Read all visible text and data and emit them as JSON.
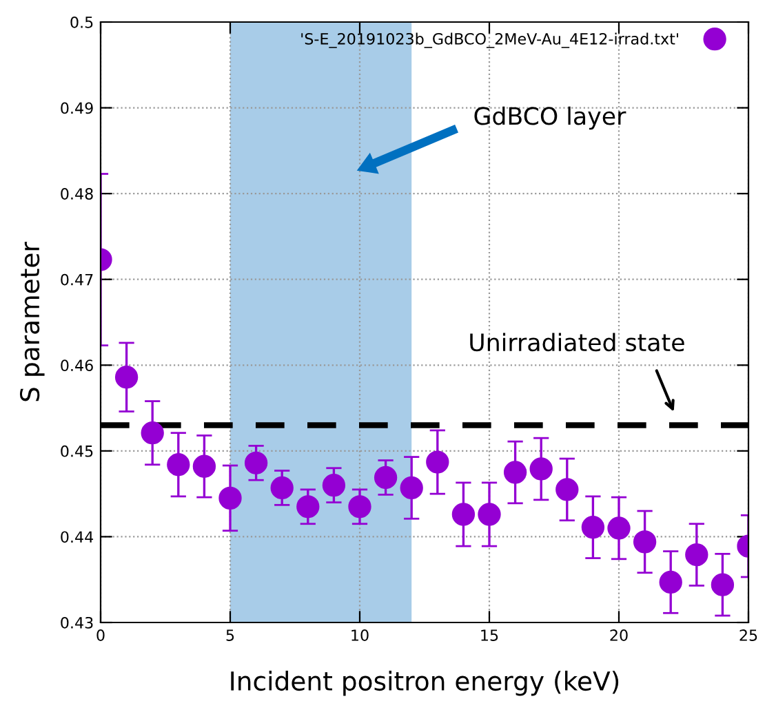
{
  "chart_data": {
    "type": "scatter",
    "xlabel": "Incident positron energy (keV)",
    "ylabel": "S parameter",
    "x": [
      0,
      1,
      2,
      3,
      4,
      5,
      6,
      7,
      8,
      9,
      10,
      11,
      12,
      13,
      14,
      15,
      16,
      17,
      18,
      19,
      20,
      21,
      22,
      23,
      24,
      25
    ],
    "series": [
      {
        "name": "'S-E_20191023b_GdBCO_2MeV-Au_4E12-irrad.txt'",
        "color": "#9400d3",
        "values": [
          0.4723,
          0.4586,
          0.4521,
          0.4484,
          0.4482,
          0.4445,
          0.4486,
          0.4457,
          0.4435,
          0.446,
          0.4435,
          0.4469,
          0.4457,
          0.4487,
          0.4426,
          0.4426,
          0.4475,
          0.4479,
          0.4455,
          0.4411,
          0.441,
          0.4394,
          0.4347,
          0.4379,
          0.4344,
          0.4389
        ],
        "errors": [
          0.01,
          0.004,
          0.0037,
          0.0037,
          0.0036,
          0.0038,
          0.002,
          0.002,
          0.002,
          0.002,
          0.002,
          0.002,
          0.0036,
          0.0037,
          0.0037,
          0.0037,
          0.0036,
          0.0036,
          0.0036,
          0.0036,
          0.0036,
          0.0036,
          0.0036,
          0.0036,
          0.0036,
          0.0036
        ]
      }
    ],
    "xlim": [
      0,
      25
    ],
    "ylim": [
      0.43,
      0.5
    ],
    "xticks": [
      0,
      5,
      10,
      15,
      20,
      25
    ],
    "yticks": [
      0.43,
      0.44,
      0.45,
      0.46,
      0.47,
      0.48,
      0.49,
      0.5
    ],
    "ref_lines": [
      {
        "axis": "y",
        "value": 0.453,
        "color": "#000000",
        "line_style": "dashed"
      }
    ],
    "bands": [
      {
        "axis": "x",
        "from": 5,
        "to": 12,
        "color": "#a8cce8"
      }
    ],
    "annotations": [
      "GdBCO layer",
      "Unirradiated state"
    ],
    "grid": true,
    "legend": "top right",
    "marker": "circle"
  }
}
